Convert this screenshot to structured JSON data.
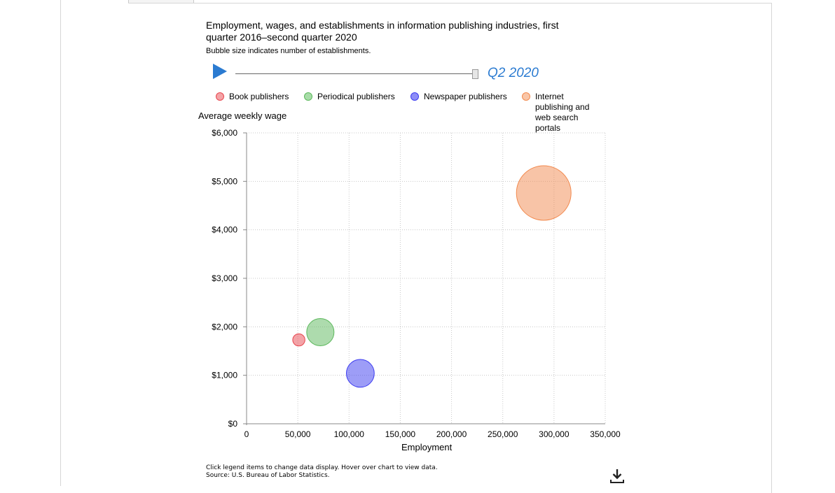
{
  "chart_data": {
    "type": "scatter",
    "title": "Employment, wages, and establishments in information publishing industries, first quarter 2016–second quarter 2020",
    "subtitle": "Bubble size indicates number of establishments.",
    "period": "Q2 2020",
    "xlabel": "Employment",
    "ylabel": "Average weekly wage",
    "xlim": [
      0,
      350000
    ],
    "ylim": [
      0,
      6000
    ],
    "xticks": [
      0,
      50000,
      100000,
      150000,
      200000,
      250000,
      300000,
      350000
    ],
    "xtick_labels": [
      "0",
      "50,000",
      "100,000",
      "150,000",
      "200,000",
      "250,000",
      "300,000",
      "350,000"
    ],
    "yticks": [
      0,
      1000,
      2000,
      3000,
      4000,
      5000,
      6000
    ],
    "ytick_labels": [
      "$0",
      "$1,000",
      "$2,000",
      "$3,000",
      "$4,000",
      "$5,000",
      "$6,000"
    ],
    "grid": true,
    "legend_position": "top",
    "series": [
      {
        "name": "Book publishers",
        "color": "#e8474f",
        "x": 51000,
        "y": 1730,
        "relative_size": 0.05
      },
      {
        "name": "Periodical publishers",
        "color": "#5cb85c",
        "x": 72000,
        "y": 1890,
        "relative_size": 0.25
      },
      {
        "name": "Newspaper publishers",
        "color": "#3b3bf0",
        "x": 111000,
        "y": 1040,
        "relative_size": 0.26
      },
      {
        "name": "Internet publishing and web search portals",
        "color": "#f28a4f",
        "x": 290000,
        "y": 4760,
        "relative_size": 1.0
      }
    ]
  },
  "footer": {
    "note": "Click legend items to change data display. Hover over chart to view data.",
    "source": "Source: U.S. Bureau of Labor Statistics."
  },
  "icons": {
    "play": "play-icon",
    "download": "download-icon"
  }
}
